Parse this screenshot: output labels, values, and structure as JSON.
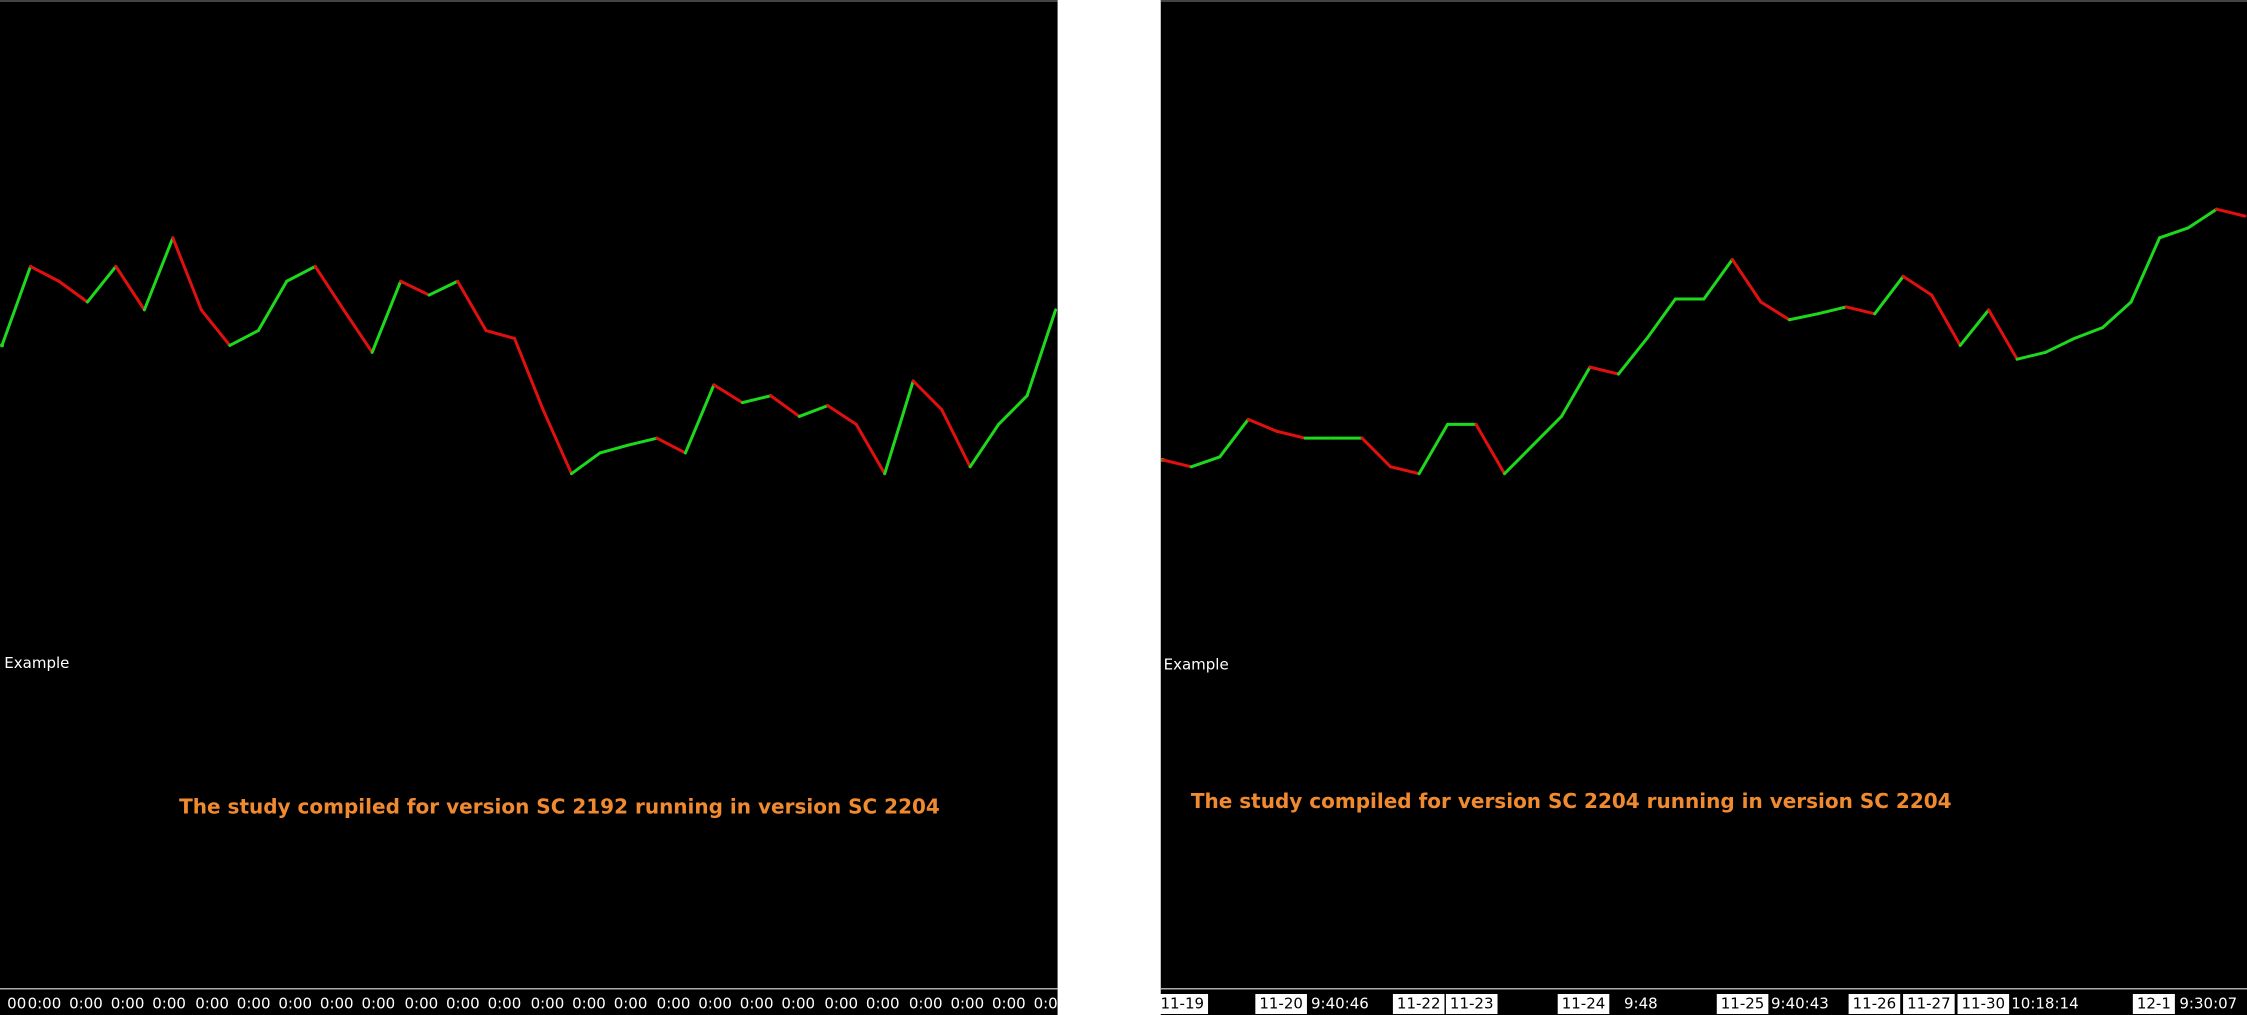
{
  "chart_data": [
    {
      "type": "line",
      "study_name": "Example",
      "annotation": "The study compiled for version SC 2192 running in version SC 2204",
      "x_labels": [
        {
          "text": "00",
          "boxed": false
        },
        {
          "text": "0:00",
          "boxed": false
        },
        {
          "text": "0:00",
          "boxed": false
        },
        {
          "text": "0:00",
          "boxed": false
        },
        {
          "text": "0:00",
          "boxed": false
        },
        {
          "text": "0:00",
          "boxed": false
        },
        {
          "text": "0:00",
          "boxed": false
        },
        {
          "text": "0:00",
          "boxed": false
        },
        {
          "text": "0:00",
          "boxed": false
        },
        {
          "text": "0:00",
          "boxed": false
        },
        {
          "text": "0:00",
          "boxed": false
        },
        {
          "text": "0:00",
          "boxed": false
        },
        {
          "text": "0:00",
          "boxed": false
        },
        {
          "text": "0:00",
          "boxed": false
        },
        {
          "text": "0:00",
          "boxed": false
        },
        {
          "text": "0:00",
          "boxed": false
        },
        {
          "text": "0:00",
          "boxed": false
        },
        {
          "text": "0:00",
          "boxed": false
        },
        {
          "text": "0:00",
          "boxed": false
        },
        {
          "text": "0:00",
          "boxed": false
        },
        {
          "text": "0:00",
          "boxed": false
        },
        {
          "text": "0:00",
          "boxed": false
        },
        {
          "text": "0:00",
          "boxed": false
        },
        {
          "text": "0:00",
          "boxed": false
        },
        {
          "text": "0:00",
          "boxed": false
        },
        {
          "text": "0:00",
          "boxed": false
        }
      ],
      "values": [
        65.2,
        73.2,
        71.7,
        69.6,
        73.2,
        68.8,
        76.1,
        68.8,
        65.2,
        66.7,
        71.7,
        73.2,
        68.8,
        64.5,
        71.7,
        70.3,
        71.7,
        66.7,
        65.9,
        58.7,
        52.2,
        54.3,
        55.1,
        55.8,
        54.3,
        61.2,
        59.4,
        60.1,
        58.0,
        59.1,
        57.2,
        52.2,
        61.6,
        58.7,
        52.9,
        57.2,
        60.1,
        68.8
      ],
      "ylim": [
        0,
        100
      ],
      "up_color": "#1ed81e",
      "down_color": "#e01010",
      "annotation_color": "#f08a30"
    },
    {
      "type": "line",
      "study_name": "Example",
      "annotation": "The study compiled for version SC 2204 running in version SC 2204",
      "x_labels": [
        {
          "text": "11-19",
          "boxed": true
        },
        {
          "text": "11-20",
          "boxed": true
        },
        {
          "text": "9:40:46",
          "boxed": false
        },
        {
          "text": "11-22",
          "boxed": true
        },
        {
          "text": "11-23",
          "boxed": true
        },
        {
          "text": "11-24",
          "boxed": true
        },
        {
          "text": "9:48",
          "boxed": false
        },
        {
          "text": "11-25",
          "boxed": true
        },
        {
          "text": "9:40:43",
          "boxed": false
        },
        {
          "text": "11-26",
          "boxed": true
        },
        {
          "text": "11-27",
          "boxed": true
        },
        {
          "text": "11-30",
          "boxed": true
        },
        {
          "text": "10:18:14",
          "boxed": false
        },
        {
          "text": "12-1",
          "boxed": true
        },
        {
          "text": "9:30:07",
          "boxed": false
        }
      ],
      "values": [
        53.6,
        52.9,
        53.9,
        57.7,
        56.5,
        55.8,
        55.8,
        55.8,
        52.9,
        52.2,
        57.2,
        57.2,
        52.2,
        55.1,
        58.0,
        63.0,
        62.3,
        65.9,
        69.9,
        69.9,
        73.9,
        69.6,
        67.8,
        68.4,
        69.1,
        68.4,
        72.2,
        70.3,
        65.2,
        68.8,
        63.8,
        64.5,
        65.9,
        67.0,
        69.6,
        76.1,
        77.1,
        79.0,
        78.3
      ],
      "ylim": [
        0,
        100
      ],
      "up_color": "#1ed81e",
      "down_color": "#e01010",
      "annotation_color": "#f08a30"
    }
  ]
}
